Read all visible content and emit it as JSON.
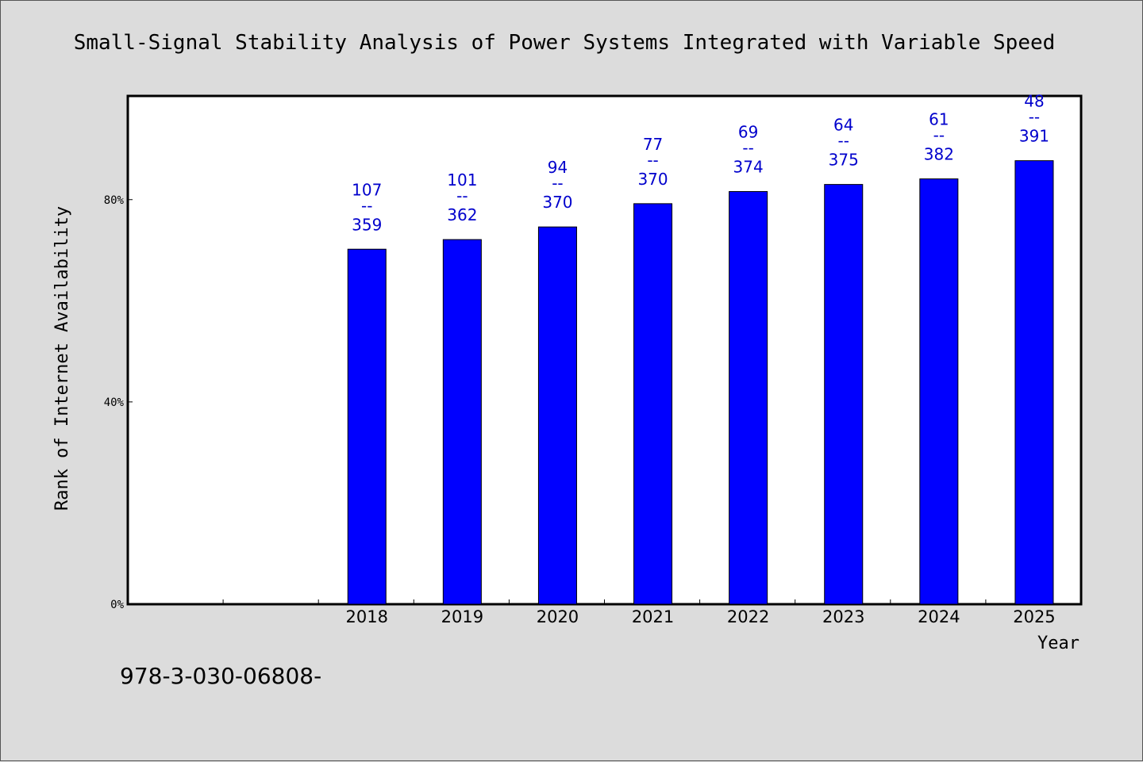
{
  "title": "Small-Signal Stability Analysis of Power Systems Integrated with Variable Speed",
  "footer_code": "978-3-030-06808-",
  "chart_data": {
    "type": "bar",
    "title": "Small-Signal Stability Analysis of Power Systems Integrated with Variable Speed",
    "xlabel": "Year",
    "ylabel": "Rank of Internet Availability",
    "categories": [
      "",
      "",
      "2018",
      "2019",
      "2020",
      "2021",
      "2022",
      "2023",
      "2024",
      "2025"
    ],
    "values": [
      null,
      null,
      70.2,
      72.1,
      74.6,
      79.2,
      81.6,
      83.0,
      84.1,
      87.7
    ],
    "bar_labels": [
      null,
      null,
      {
        "top": "107",
        "sep": "--",
        "bottom": "359"
      },
      {
        "top": "101",
        "sep": "--",
        "bottom": "362"
      },
      {
        "top": "94",
        "sep": "--",
        "bottom": "370"
      },
      {
        "top": "77",
        "sep": "--",
        "bottom": "370"
      },
      {
        "top": "69",
        "sep": "--",
        "bottom": "374"
      },
      {
        "top": "64",
        "sep": "--",
        "bottom": "375"
      },
      {
        "top": "61",
        "sep": "--",
        "bottom": "382"
      },
      {
        "top": "48",
        "sep": "--",
        "bottom": "391"
      }
    ],
    "yticks": [
      0,
      40,
      80
    ],
    "ytick_labels": [
      "0%",
      "40%",
      "80%"
    ],
    "ylim": [
      0,
      100.5
    ],
    "grid": false,
    "legend": "none",
    "colors": {
      "bar": "#0000ff",
      "bar_label": "#0000cc",
      "plot_bg": "#ffffff",
      "page_bg": "#dcdcdc"
    }
  }
}
